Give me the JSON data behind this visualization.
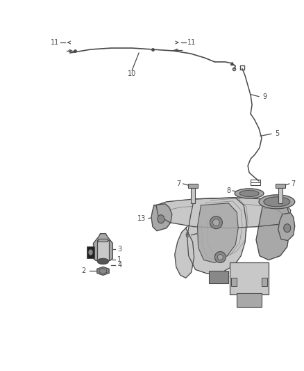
{
  "bg_color": "#ffffff",
  "line_color": "#4a4a4a",
  "figsize": [
    4.38,
    5.33
  ],
  "dpi": 100,
  "part_gray_light": "#c8c8c8",
  "part_gray_med": "#a8a8a8",
  "part_gray_dark": "#888888",
  "part_gray_vdark": "#555555",
  "part_black": "#222222"
}
